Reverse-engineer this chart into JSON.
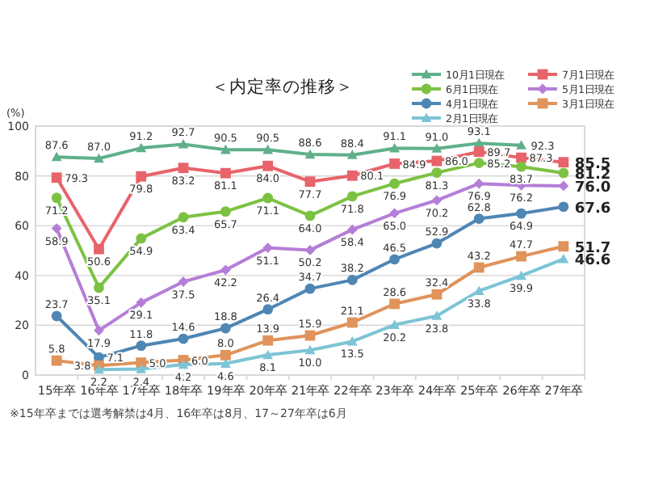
{
  "chart_data": {
    "type": "line",
    "title": "＜内定率の推移＞",
    "ylabel": "(%)",
    "categories": [
      "15年卒",
      "16年卒",
      "17年卒",
      "18年卒",
      "19年卒",
      "20年卒",
      "21年卒",
      "22年卒",
      "23年卒",
      "24年卒",
      "25年卒",
      "26年卒",
      "27年卒"
    ],
    "ylim": [
      0,
      100
    ],
    "yticks": [
      0,
      20,
      40,
      60,
      80,
      100
    ],
    "grid": "y",
    "legend": "top right",
    "annotations": [
      "※15年卒までは選考解禁は4月、16年卒は8月、17～27年卒は6月"
    ],
    "series": [
      {
        "name": "10月1日現在",
        "color": "#5fb08a",
        "marker": "triangle",
        "values": [
          87.6,
          87.0,
          91.2,
          92.7,
          90.5,
          90.5,
          88.6,
          88.4,
          91.1,
          91.0,
          93.1,
          92.3,
          null
        ],
        "value_labels": [
          "87.6",
          "87.0",
          "91.2",
          "92.7",
          "90.5",
          "90.5",
          "88.6",
          "88.4",
          "91.1",
          "91.0",
          "93.1",
          "92.3",
          null
        ]
      },
      {
        "name": "7月1日現在",
        "color": "#e8636a",
        "marker": "square",
        "values": [
          79.3,
          50.6,
          79.8,
          83.2,
          81.1,
          84.0,
          77.7,
          80.1,
          84.9,
          86.0,
          89.7,
          87.3,
          85.5
        ],
        "value_labels": [
          "79.3",
          "50.6",
          "79.8",
          "83.2",
          "81.1",
          "84.0",
          "77.7",
          "80.1",
          "84.9",
          "86.0",
          "89.7",
          "87.3",
          "85.5"
        ]
      },
      {
        "name": "6月1日現在",
        "color": "#7cc242",
        "marker": "circle",
        "values": [
          71.2,
          35.1,
          54.9,
          63.4,
          65.7,
          71.1,
          64.0,
          71.8,
          76.9,
          81.3,
          85.2,
          83.7,
          81.2
        ],
        "value_labels": [
          "71.2",
          "35.1",
          "54.9",
          "63.4",
          "65.7",
          "71.1",
          "64.0",
          "71.8",
          "76.9",
          "81.3",
          "85.2",
          "83.7",
          "81.2"
        ]
      },
      {
        "name": "5月1日現在",
        "color": "#b57ed6",
        "marker": "diamond",
        "values": [
          58.9,
          17.9,
          29.1,
          37.5,
          42.2,
          51.1,
          50.2,
          58.4,
          65.0,
          70.2,
          76.9,
          76.2,
          76.0
        ],
        "value_labels": [
          "58.9",
          "17.9",
          "29.1",
          "37.5",
          "42.2",
          "51.1",
          "50.2",
          "58.4",
          "65.0",
          "70.2",
          "76.9",
          "76.2",
          "76.0"
        ]
      },
      {
        "name": "4月1日現在",
        "color": "#4e86b4",
        "marker": "circle",
        "values": [
          23.7,
          7.1,
          11.8,
          14.6,
          18.8,
          26.4,
          34.7,
          38.2,
          46.5,
          52.9,
          62.8,
          64.9,
          67.6
        ],
        "value_labels": [
          "23.7",
          "7.1",
          "11.8",
          "14.6",
          "18.8",
          "26.4",
          "34.7",
          "38.2",
          "46.5",
          "52.9",
          "62.8",
          "64.9",
          "67.6"
        ]
      },
      {
        "name": "3月1日現在",
        "color": "#e0935a",
        "marker": "square",
        "values": [
          5.8,
          3.8,
          5.0,
          6.0,
          8.0,
          13.9,
          15.9,
          21.1,
          28.6,
          32.4,
          43.2,
          47.7,
          51.7
        ],
        "value_labels": [
          "5.8",
          "3.8",
          "5.0",
          "6.0",
          "8.0",
          "13.9",
          "15.9",
          "21.1",
          "28.6",
          "32.4",
          "43.2",
          "47.7",
          "51.7"
        ]
      },
      {
        "name": "2月1日現在",
        "color": "#7cc4d6",
        "marker": "triangle",
        "values": [
          null,
          2.2,
          2.4,
          4.2,
          4.6,
          8.1,
          10.0,
          13.5,
          20.2,
          23.8,
          33.8,
          39.9,
          46.6
        ],
        "value_labels": [
          null,
          "2.2",
          "2.4",
          "4.2",
          "4.6",
          "8.1",
          "10.0",
          "13.5",
          "20.2",
          "23.8",
          "33.8",
          "39.9",
          "46.6"
        ]
      }
    ]
  }
}
